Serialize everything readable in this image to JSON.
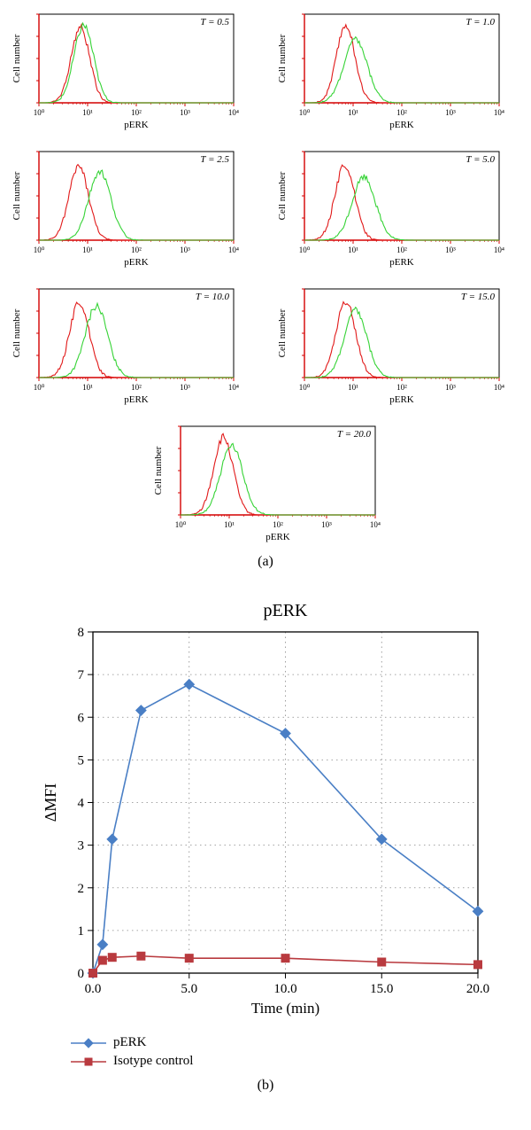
{
  "colors": {
    "series_red": "#e11919",
    "series_green": "#36d336",
    "axis": "#d40000",
    "text": "#000000",
    "perk_line": "#4a7fc5",
    "iso_line": "#b93a3f",
    "iso_fill": "#b93a3f",
    "grid_dot": "#888888",
    "plot_border": "#000000"
  },
  "histograms": {
    "ylabel": "Cell number",
    "xlabel": "pERK",
    "xticks": [
      "10⁰",
      "10¹",
      "10²",
      "10³",
      "10⁴"
    ],
    "panels": [
      {
        "T_label": "T = 0.5",
        "red_peak_x": 0.85,
        "red_peak_h": 0.9,
        "green_peak_x": 0.92,
        "green_peak_h": 0.92,
        "width_r": 0.4,
        "width_g": 0.42
      },
      {
        "T_label": "T = 1.0",
        "red_peak_x": 0.85,
        "red_peak_h": 0.92,
        "green_peak_x": 1.05,
        "green_peak_h": 0.75,
        "width_r": 0.4,
        "width_g": 0.5
      },
      {
        "T_label": "T = 2.5",
        "red_peak_x": 0.82,
        "red_peak_h": 0.88,
        "green_peak_x": 1.25,
        "green_peak_h": 0.82,
        "width_r": 0.42,
        "width_g": 0.48
      },
      {
        "T_label": "T = 5.0",
        "red_peak_x": 0.83,
        "red_peak_h": 0.9,
        "green_peak_x": 1.22,
        "green_peak_h": 0.75,
        "width_r": 0.42,
        "width_g": 0.5
      },
      {
        "T_label": "T = 10.0",
        "red_peak_x": 0.83,
        "red_peak_h": 0.9,
        "green_peak_x": 1.18,
        "green_peak_h": 0.85,
        "width_r": 0.42,
        "width_g": 0.48
      },
      {
        "T_label": "T = 15.0",
        "red_peak_x": 0.85,
        "red_peak_h": 0.9,
        "green_peak_x": 1.05,
        "green_peak_h": 0.8,
        "width_r": 0.42,
        "width_g": 0.48
      },
      {
        "T_label": "T = 20.0",
        "red_peak_x": 0.88,
        "red_peak_h": 0.92,
        "green_peak_x": 1.05,
        "green_peak_h": 0.82,
        "width_r": 0.42,
        "width_g": 0.48
      }
    ]
  },
  "panel_a_caption": "(a)",
  "panel_b_caption": "(b)",
  "panel_b": {
    "title": "pERK",
    "ylabel": "ΔMFI",
    "xlabel": "Time (min)",
    "xlim": [
      0,
      20
    ],
    "ylim": [
      0,
      8
    ],
    "xticks": [
      0.0,
      5.0,
      10.0,
      15.0,
      20.0
    ],
    "yticks": [
      0,
      1,
      2,
      3,
      4,
      5,
      6,
      7,
      8
    ],
    "series": [
      {
        "name": "pERK",
        "color_key": "perk_line",
        "marker": "diamond",
        "points": [
          {
            "x": 0.0,
            "y": 0.0
          },
          {
            "x": 0.5,
            "y": 0.67
          },
          {
            "x": 1.0,
            "y": 3.14
          },
          {
            "x": 2.5,
            "y": 6.16
          },
          {
            "x": 5.0,
            "y": 6.77
          },
          {
            "x": 10.0,
            "y": 5.62
          },
          {
            "x": 15.0,
            "y": 3.14
          },
          {
            "x": 20.0,
            "y": 1.45
          }
        ]
      },
      {
        "name": "Isotype control",
        "color_key": "iso_line",
        "marker": "square",
        "points": [
          {
            "x": 0.0,
            "y": 0.0
          },
          {
            "x": 0.5,
            "y": 0.3
          },
          {
            "x": 1.0,
            "y": 0.37
          },
          {
            "x": 2.5,
            "y": 0.4
          },
          {
            "x": 5.0,
            "y": 0.35
          },
          {
            "x": 10.0,
            "y": 0.35
          },
          {
            "x": 15.0,
            "y": 0.26
          },
          {
            "x": 20.0,
            "y": 0.2
          }
        ]
      }
    ],
    "legend": {
      "perk": "pERK",
      "iso": "Isotype control"
    }
  }
}
